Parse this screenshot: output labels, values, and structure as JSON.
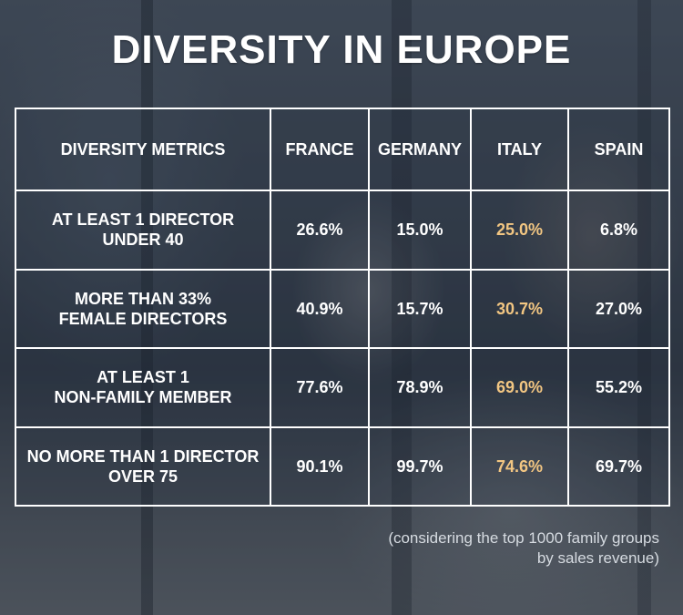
{
  "title": "DIVERSITY IN EUROPE",
  "table": {
    "headers": [
      "DIVERSITY METRICS",
      "FRANCE",
      "GERMANY",
      "ITALY",
      "SPAIN"
    ],
    "rows": [
      {
        "metric": "AT LEAST 1 DIRECTOR\nUNDER 40",
        "values": [
          "26.6%",
          "15.0%",
          "25.0%",
          "6.8%"
        ]
      },
      {
        "metric": "MORE THAN 33%\nFEMALE DIRECTORS",
        "values": [
          "40.9%",
          "15.7%",
          "30.7%",
          "27.0%"
        ]
      },
      {
        "metric": "AT LEAST 1\nNON-FAMILY MEMBER",
        "values": [
          "77.6%",
          "78.9%",
          "69.0%",
          "55.2%"
        ]
      },
      {
        "metric": "NO MORE THAN 1 DIRECTOR\nOVER 75",
        "values": [
          "90.1%",
          "99.7%",
          "74.6%",
          "69.7%"
        ]
      }
    ],
    "highlight_column": "ITALY",
    "highlight_color": "#f2c682"
  },
  "footnote": "(considering the top 1000 family groups\nby sales revenue)"
}
